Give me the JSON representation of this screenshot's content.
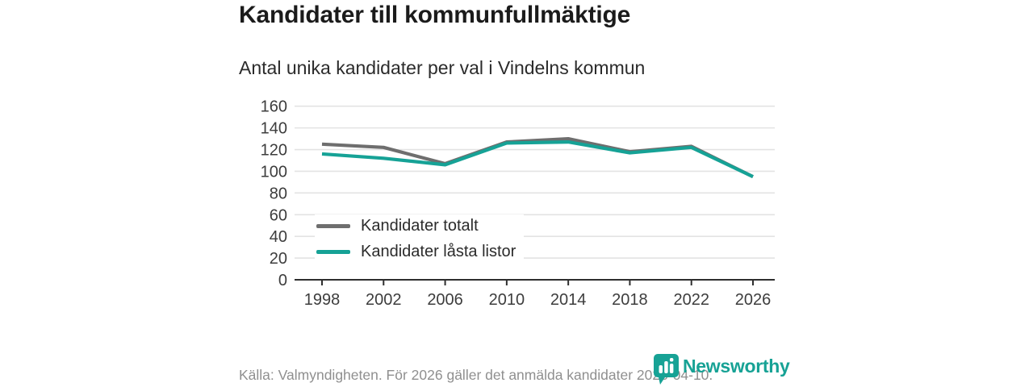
{
  "header": {
    "title": "Kandidater till kommunfullmäktige",
    "subtitle": "Antal unika kandidater per val i Vindelns kommun"
  },
  "chart_data": {
    "type": "line",
    "x": [
      1998,
      2002,
      2006,
      2010,
      2014,
      2018,
      2022,
      2026
    ],
    "series": [
      {
        "name": "Kandidater totalt",
        "color": "#6e6e6e",
        "values": [
          125,
          122,
          107,
          127,
          130,
          118,
          123,
          95
        ]
      },
      {
        "name": "Kandidater låsta listor",
        "color": "#16a296",
        "values": [
          116,
          112,
          106,
          126,
          127,
          117,
          122,
          95
        ]
      }
    ],
    "ylim": [
      0,
      160
    ],
    "ytick_step": 20,
    "grid": true,
    "gridline_color": "#e3e3e3",
    "axis_color": "#2e2e2e",
    "legend_position": "inside-left"
  },
  "footer": {
    "source": "Källa: Valmyndigheten. För 2026 gäller det anmälda kandidater 2026-04-10."
  },
  "branding": {
    "logo_text": "Newsworthy",
    "logo_color": "#17a295",
    "logo_icon": "newsworthy-pin-barchart-icon"
  }
}
